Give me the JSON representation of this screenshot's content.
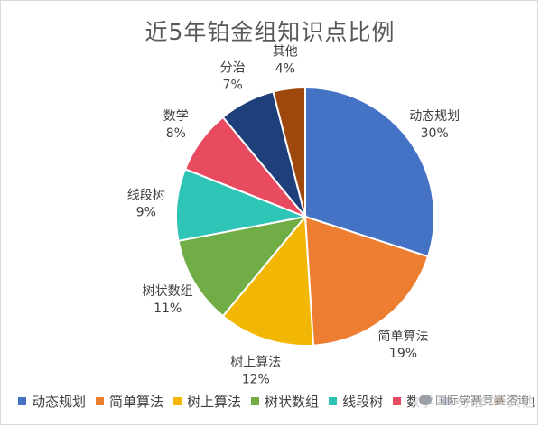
{
  "chart_data": {
    "type": "pie",
    "title": "近5年铂金组知识点比例",
    "categories": [
      "动态规划",
      "简单算法",
      "树上算法",
      "树状数组",
      "线段树",
      "数学",
      "分治",
      "其他"
    ],
    "values": [
      30,
      19,
      12,
      11,
      9,
      8,
      7,
      4
    ],
    "value_labels": [
      "30%",
      "19%",
      "12%",
      "11%",
      "9%",
      "8%",
      "7%",
      "4%"
    ],
    "colors": [
      "#4472C4",
      "#ED7D31",
      "#F2B705",
      "#70AD47",
      "#2EC4B6",
      "#E84A5F",
      "#1F3F7A",
      "#9E480E"
    ],
    "legend_position": "bottom"
  },
  "watermark": {
    "text": "国际学赛竞赛咨询"
  }
}
